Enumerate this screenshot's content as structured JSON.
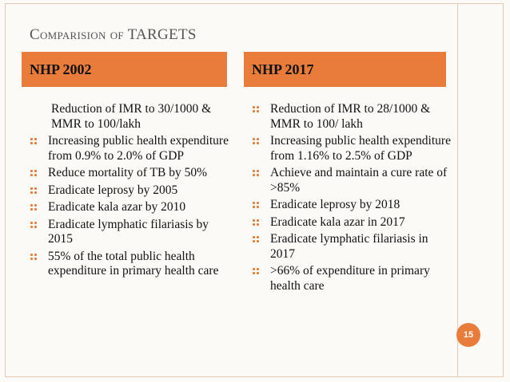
{
  "slide": {
    "title": "Comparision of TARGETS",
    "page_number": "15",
    "accent_color": "#e97c3b"
  },
  "left": {
    "header": "NHP 2002",
    "items": [
      "Reduction of IMR to 30/1000 & MMR to 100/lakh",
      "Increasing public health expenditure from 0.9% to 2.0% of GDP",
      "Reduce mortality of TB by 50%",
      "Eradicate leprosy by 2005",
      "Eradicate kala azar by 2010",
      "Eradicate lymphatic filariasis by 2015",
      "55% of the total public health expenditure in primary health care"
    ]
  },
  "right": {
    "header": "NHP 2017",
    "items": [
      "Reduction of IMR to 28/1000 & MMR to 100/ lakh",
      "Increasing public health expenditure from 1.16% to 2.5% of GDP",
      "Achieve and maintain a cure rate of >85%",
      "Eradicate leprosy by 2018",
      "Eradicate kala azar in 2017",
      "Eradicate lymphatic filariasis in 2017",
      ">66% of expenditure in primary health care"
    ]
  }
}
